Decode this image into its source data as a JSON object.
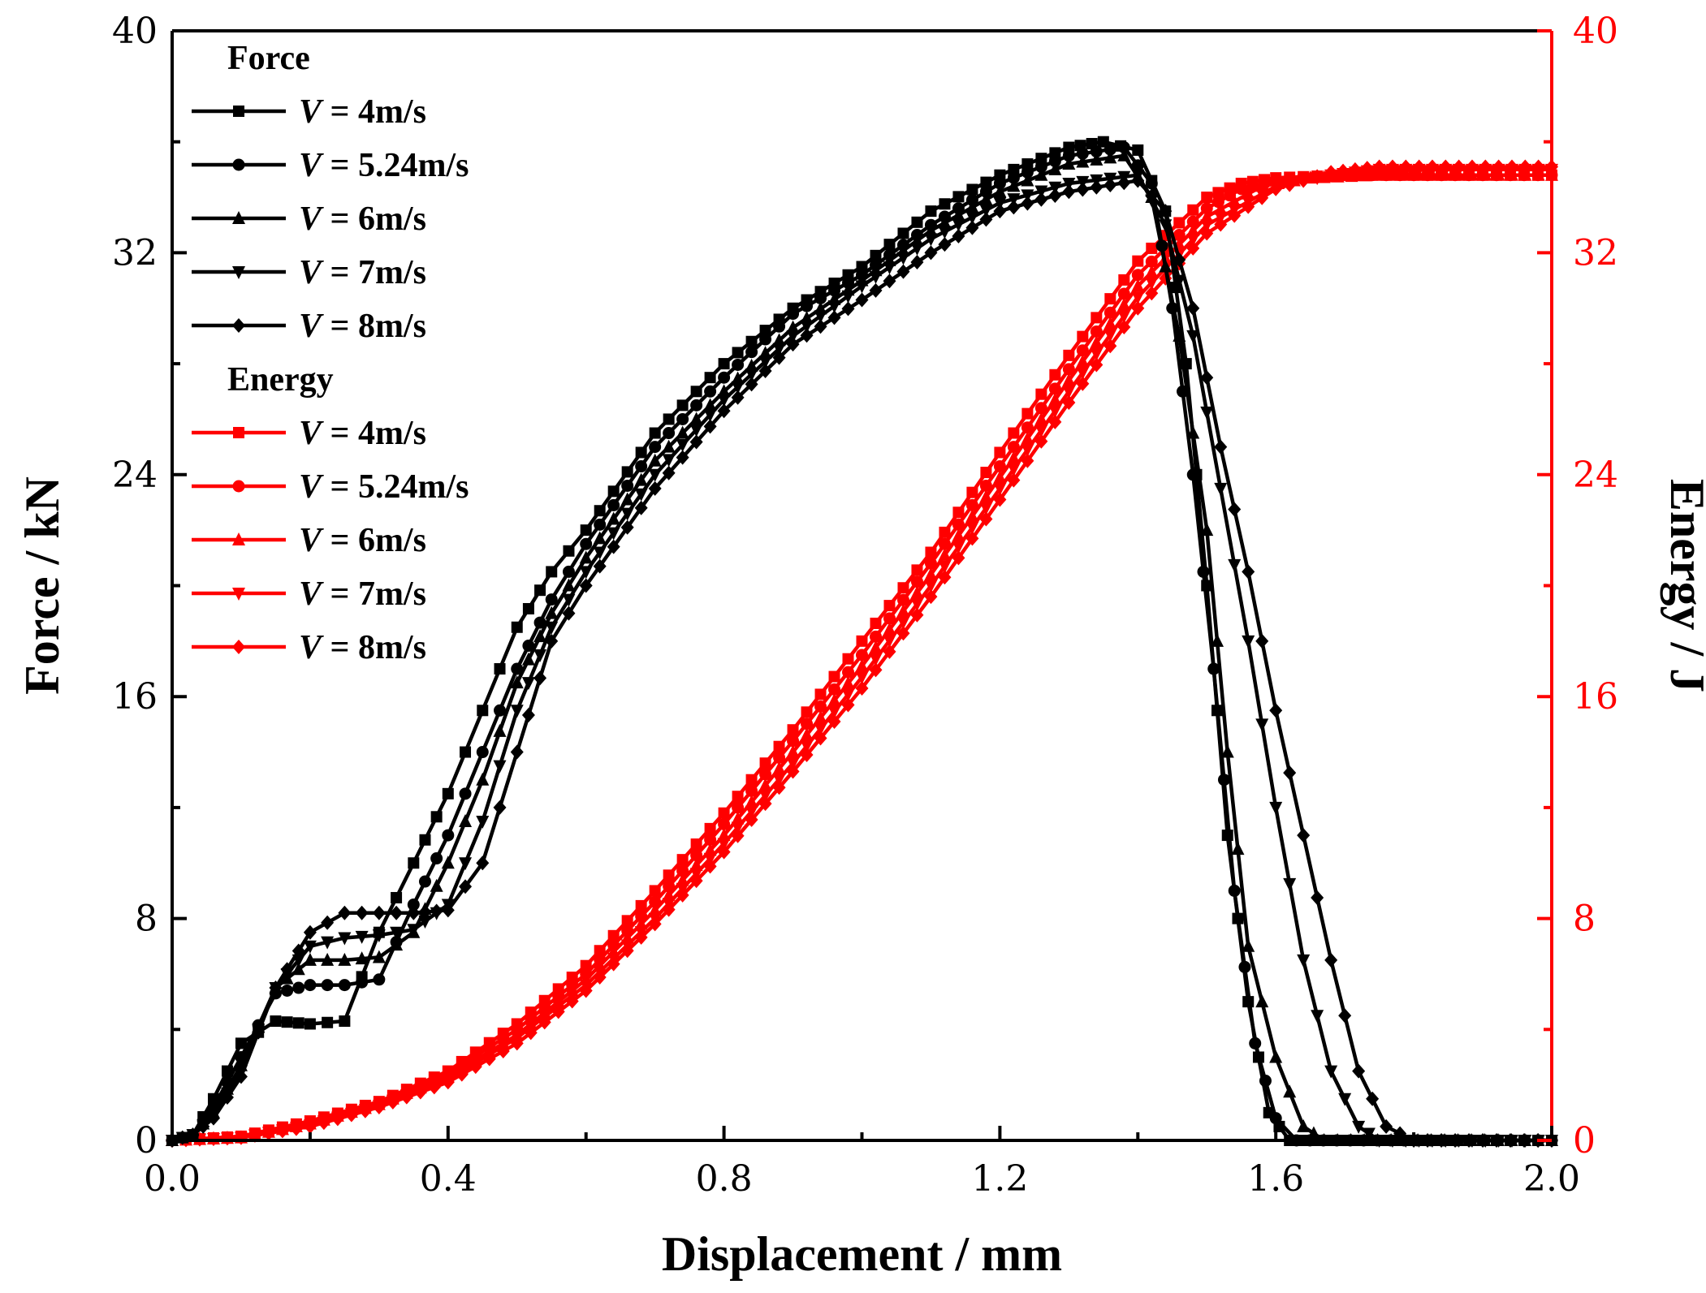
{
  "chart_data": {
    "type": "line",
    "xlabel": "Displacement / mm",
    "ylabel_left": "Force / kN",
    "ylabel_right": "Energy / J",
    "xlim": [
      0,
      2.0
    ],
    "ylim_left": [
      0,
      40
    ],
    "ylim_right": [
      0,
      40
    ],
    "x_ticks": [
      "0.0",
      "0.4",
      "0.8",
      "1.2",
      "1.6",
      "2.0"
    ],
    "y_ticks_left": [
      "0",
      "8",
      "16",
      "24",
      "32",
      "40"
    ],
    "y_ticks_right": [
      "0",
      "8",
      "16",
      "24",
      "32",
      "40"
    ],
    "grid": false,
    "legend_position": "top-left",
    "colors": {
      "force": "#000000",
      "energy": "#ff0000"
    },
    "legend_groups": [
      {
        "header": "Force",
        "color": "#000000",
        "entries": [
          {
            "label": "V = 4m/s",
            "marker": "square"
          },
          {
            "label": "V = 5.24m/s",
            "marker": "circle"
          },
          {
            "label": "V = 6m/s",
            "marker": "triangle-up"
          },
          {
            "label": "V = 7m/s",
            "marker": "triangle-down"
          },
          {
            "label": "V = 8m/s",
            "marker": "diamond"
          }
        ]
      },
      {
        "header": "Energy",
        "color": "#ff0000",
        "entries": [
          {
            "label": "V = 4m/s",
            "marker": "square"
          },
          {
            "label": "V = 5.24m/s",
            "marker": "circle"
          },
          {
            "label": "V = 6m/s",
            "marker": "triangle-up"
          },
          {
            "label": "V = 7m/s",
            "marker": "triangle-down"
          },
          {
            "label": "V = 8m/s",
            "marker": "diamond"
          }
        ]
      }
    ],
    "force_series": [
      {
        "marker": "square",
        "points": [
          [
            0,
            0
          ],
          [
            0.03,
            0.2
          ],
          [
            0.06,
            1.5
          ],
          [
            0.1,
            3.5
          ],
          [
            0.15,
            4.3
          ],
          [
            0.2,
            4.2
          ],
          [
            0.25,
            4.3
          ],
          [
            0.3,
            7.5
          ],
          [
            0.35,
            10
          ],
          [
            0.4,
            12.5
          ],
          [
            0.45,
            15.5
          ],
          [
            0.5,
            18.5
          ],
          [
            0.55,
            20.5
          ],
          [
            0.6,
            22
          ],
          [
            0.7,
            25.5
          ],
          [
            0.8,
            28
          ],
          [
            0.9,
            30
          ],
          [
            1.0,
            31.5
          ],
          [
            1.1,
            33.5
          ],
          [
            1.2,
            34.8
          ],
          [
            1.3,
            35.8
          ],
          [
            1.35,
            36.0
          ],
          [
            1.4,
            35.7
          ],
          [
            1.44,
            33.5
          ],
          [
            1.47,
            28
          ],
          [
            1.5,
            20
          ],
          [
            1.53,
            11
          ],
          [
            1.56,
            5
          ],
          [
            1.59,
            1
          ],
          [
            1.62,
            0
          ],
          [
            2.0,
            0
          ]
        ]
      },
      {
        "marker": "circle",
        "points": [
          [
            0,
            0
          ],
          [
            0.03,
            0.2
          ],
          [
            0.06,
            1.2
          ],
          [
            0.1,
            3
          ],
          [
            0.15,
            5.3
          ],
          [
            0.2,
            5.6
          ],
          [
            0.25,
            5.6
          ],
          [
            0.3,
            5.8
          ],
          [
            0.35,
            8.5
          ],
          [
            0.4,
            11
          ],
          [
            0.45,
            14
          ],
          [
            0.5,
            17
          ],
          [
            0.55,
            19.5
          ],
          [
            0.6,
            21.5
          ],
          [
            0.7,
            25
          ],
          [
            0.8,
            27.5
          ],
          [
            0.9,
            29.8
          ],
          [
            1.0,
            31.2
          ],
          [
            1.1,
            33
          ],
          [
            1.2,
            34.5
          ],
          [
            1.3,
            35.5
          ],
          [
            1.38,
            35.8
          ],
          [
            1.42,
            34.5
          ],
          [
            1.45,
            30
          ],
          [
            1.48,
            24
          ],
          [
            1.51,
            17
          ],
          [
            1.54,
            9
          ],
          [
            1.57,
            3.5
          ],
          [
            1.6,
            0.8
          ],
          [
            1.63,
            0
          ],
          [
            2.0,
            0
          ]
        ]
      },
      {
        "marker": "triangle-up",
        "points": [
          [
            0,
            0
          ],
          [
            0.03,
            0.2
          ],
          [
            0.06,
            1
          ],
          [
            0.1,
            2.7
          ],
          [
            0.15,
            5.5
          ],
          [
            0.2,
            6.5
          ],
          [
            0.25,
            6.5
          ],
          [
            0.3,
            6.6
          ],
          [
            0.35,
            7.5
          ],
          [
            0.4,
            10
          ],
          [
            0.45,
            13
          ],
          [
            0.5,
            16.5
          ],
          [
            0.55,
            19
          ],
          [
            0.6,
            21
          ],
          [
            0.7,
            24.5
          ],
          [
            0.8,
            27
          ],
          [
            0.9,
            29.3
          ],
          [
            1.0,
            31
          ],
          [
            1.1,
            32.8
          ],
          [
            1.2,
            34.2
          ],
          [
            1.3,
            35.2
          ],
          [
            1.38,
            35.5
          ],
          [
            1.42,
            34
          ],
          [
            1.46,
            29
          ],
          [
            1.5,
            22
          ],
          [
            1.53,
            14
          ],
          [
            1.56,
            7
          ],
          [
            1.6,
            3
          ],
          [
            1.64,
            0.5
          ],
          [
            1.67,
            0
          ],
          [
            2.0,
            0
          ]
        ]
      },
      {
        "marker": "triangle-down",
        "points": [
          [
            0,
            0
          ],
          [
            0.03,
            0.2
          ],
          [
            0.06,
            0.9
          ],
          [
            0.1,
            2.5
          ],
          [
            0.15,
            5.5
          ],
          [
            0.2,
            7
          ],
          [
            0.25,
            7.3
          ],
          [
            0.3,
            7.4
          ],
          [
            0.35,
            7.6
          ],
          [
            0.4,
            8.5
          ],
          [
            0.45,
            11.5
          ],
          [
            0.5,
            15.5
          ],
          [
            0.55,
            18.5
          ],
          [
            0.6,
            20.5
          ],
          [
            0.7,
            24
          ],
          [
            0.8,
            26.7
          ],
          [
            0.9,
            29
          ],
          [
            1.0,
            30.8
          ],
          [
            1.1,
            32.5
          ],
          [
            1.2,
            33.8
          ],
          [
            1.3,
            34.5
          ],
          [
            1.4,
            34.8
          ],
          [
            1.44,
            33
          ],
          [
            1.48,
            29
          ],
          [
            1.52,
            23.5
          ],
          [
            1.56,
            18
          ],
          [
            1.6,
            12
          ],
          [
            1.64,
            6.5
          ],
          [
            1.68,
            2.5
          ],
          [
            1.72,
            0.5
          ],
          [
            1.75,
            0
          ],
          [
            2.0,
            0
          ]
        ]
      },
      {
        "marker": "diamond",
        "points": [
          [
            0,
            0
          ],
          [
            0.03,
            0.2
          ],
          [
            0.06,
            0.8
          ],
          [
            0.1,
            2.3
          ],
          [
            0.15,
            5.5
          ],
          [
            0.2,
            7.5
          ],
          [
            0.25,
            8.2
          ],
          [
            0.3,
            8.2
          ],
          [
            0.35,
            8.2
          ],
          [
            0.4,
            8.3
          ],
          [
            0.45,
            10
          ],
          [
            0.5,
            14
          ],
          [
            0.55,
            18
          ],
          [
            0.6,
            20
          ],
          [
            0.7,
            23.5
          ],
          [
            0.8,
            26.3
          ],
          [
            0.9,
            28.7
          ],
          [
            1.0,
            30.3
          ],
          [
            1.1,
            32
          ],
          [
            1.2,
            33.5
          ],
          [
            1.3,
            34.2
          ],
          [
            1.4,
            34.6
          ],
          [
            1.44,
            33.5
          ],
          [
            1.48,
            30
          ],
          [
            1.52,
            25
          ],
          [
            1.56,
            20.5
          ],
          [
            1.6,
            15.5
          ],
          [
            1.64,
            11
          ],
          [
            1.68,
            6.5
          ],
          [
            1.72,
            2.5
          ],
          [
            1.76,
            0.5
          ],
          [
            1.8,
            0
          ],
          [
            2.0,
            0
          ]
        ]
      }
    ],
    "energy_series": [
      {
        "marker": "square",
        "points": [
          [
            0,
            0
          ],
          [
            0.1,
            0.15
          ],
          [
            0.2,
            0.7
          ],
          [
            0.3,
            1.4
          ],
          [
            0.4,
            2.5
          ],
          [
            0.5,
            4.2
          ],
          [
            0.6,
            6.3
          ],
          [
            0.7,
            9.0
          ],
          [
            0.8,
            11.8
          ],
          [
            0.9,
            14.8
          ],
          [
            1.0,
            18.0
          ],
          [
            1.1,
            21.2
          ],
          [
            1.2,
            24.8
          ],
          [
            1.3,
            28.3
          ],
          [
            1.4,
            31.7
          ],
          [
            1.5,
            34.0
          ],
          [
            1.55,
            34.5
          ],
          [
            1.6,
            34.7
          ],
          [
            1.7,
            34.8
          ],
          [
            2.0,
            34.8
          ]
        ]
      },
      {
        "marker": "circle",
        "points": [
          [
            0,
            0
          ],
          [
            0.1,
            0.12
          ],
          [
            0.2,
            0.65
          ],
          [
            0.3,
            1.35
          ],
          [
            0.4,
            2.4
          ],
          [
            0.5,
            4.0
          ],
          [
            0.6,
            6.0
          ],
          [
            0.7,
            8.6
          ],
          [
            0.8,
            11.4
          ],
          [
            0.9,
            14.4
          ],
          [
            1.0,
            17.5
          ],
          [
            1.1,
            20.8
          ],
          [
            1.2,
            24.3
          ],
          [
            1.3,
            27.8
          ],
          [
            1.4,
            31.2
          ],
          [
            1.5,
            33.6
          ],
          [
            1.55,
            34.3
          ],
          [
            1.6,
            34.6
          ],
          [
            1.7,
            34.8
          ],
          [
            2.0,
            34.8
          ]
        ]
      },
      {
        "marker": "triangle-up",
        "points": [
          [
            0,
            0
          ],
          [
            0.1,
            0.1
          ],
          [
            0.2,
            0.6
          ],
          [
            0.3,
            1.3
          ],
          [
            0.4,
            2.3
          ],
          [
            0.5,
            3.8
          ],
          [
            0.6,
            5.8
          ],
          [
            0.7,
            8.3
          ],
          [
            0.8,
            11.0
          ],
          [
            0.9,
            14.0
          ],
          [
            1.0,
            17.1
          ],
          [
            1.1,
            20.4
          ],
          [
            1.2,
            23.9
          ],
          [
            1.3,
            27.4
          ],
          [
            1.4,
            30.8
          ],
          [
            1.5,
            33.3
          ],
          [
            1.58,
            34.4
          ],
          [
            1.65,
            34.7
          ],
          [
            1.75,
            34.8
          ],
          [
            2.0,
            34.8
          ]
        ]
      },
      {
        "marker": "triangle-down",
        "points": [
          [
            0,
            0
          ],
          [
            0.1,
            0.1
          ],
          [
            0.2,
            0.55
          ],
          [
            0.3,
            1.25
          ],
          [
            0.4,
            2.2
          ],
          [
            0.5,
            3.7
          ],
          [
            0.6,
            5.6
          ],
          [
            0.7,
            8.0
          ],
          [
            0.8,
            10.7
          ],
          [
            0.9,
            13.6
          ],
          [
            1.0,
            16.7
          ],
          [
            1.1,
            20.0
          ],
          [
            1.2,
            23.5
          ],
          [
            1.3,
            27.0
          ],
          [
            1.4,
            30.4
          ],
          [
            1.5,
            33.0
          ],
          [
            1.6,
            34.4
          ],
          [
            1.68,
            34.8
          ],
          [
            1.75,
            35.0
          ],
          [
            2.0,
            35.0
          ]
        ]
      },
      {
        "marker": "diamond",
        "points": [
          [
            0,
            0
          ],
          [
            0.1,
            0.1
          ],
          [
            0.2,
            0.5
          ],
          [
            0.3,
            1.2
          ],
          [
            0.4,
            2.1
          ],
          [
            0.5,
            3.5
          ],
          [
            0.6,
            5.4
          ],
          [
            0.7,
            7.8
          ],
          [
            0.8,
            10.4
          ],
          [
            0.9,
            13.3
          ],
          [
            1.0,
            16.3
          ],
          [
            1.1,
            19.6
          ],
          [
            1.2,
            23.1
          ],
          [
            1.3,
            26.6
          ],
          [
            1.4,
            30.0
          ],
          [
            1.5,
            32.7
          ],
          [
            1.6,
            34.3
          ],
          [
            1.68,
            34.9
          ],
          [
            1.75,
            35.1
          ],
          [
            2.0,
            35.1
          ]
        ]
      }
    ]
  }
}
